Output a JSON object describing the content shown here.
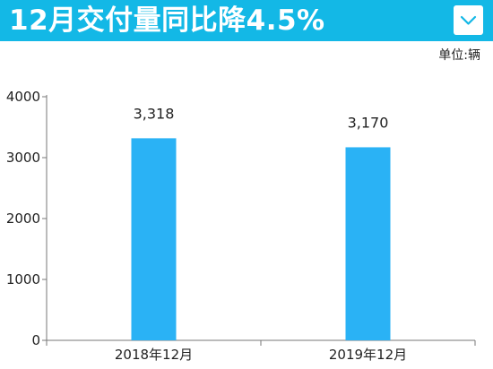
{
  "header": {
    "title": "12月交付量同比降4.5%",
    "dropdown_icon": "chevron-down-icon"
  },
  "unit_label": "单位:辆",
  "colors": {
    "header": "#13b8e6",
    "bar": "#2ab2f5",
    "axis": "#777777"
  },
  "chart_data": {
    "type": "bar",
    "categories": [
      "2018年12月",
      "2019年12月"
    ],
    "values": [
      3318,
      3170
    ],
    "data_labels": [
      "3,318",
      "3,170"
    ],
    "title": "",
    "xlabel": "",
    "ylabel": "",
    "ylim": [
      0,
      4000
    ],
    "yticks": [
      0,
      1000,
      2000,
      3000,
      4000
    ],
    "grid": false,
    "legend": "none"
  }
}
